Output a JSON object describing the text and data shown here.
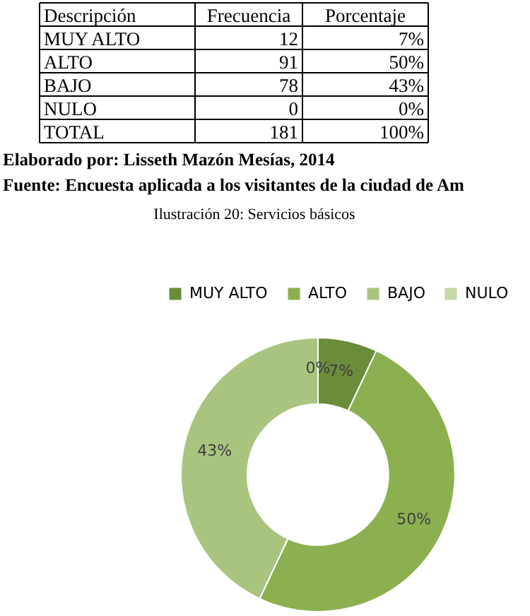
{
  "chart_data": {
    "type": "donut",
    "title": "Ilustración 20: Servicios básicos",
    "categories": [
      "MUY ALTO",
      "ALTO",
      "BAJO",
      "NULO"
    ],
    "values": [
      7,
      50,
      43,
      0
    ],
    "value_labels": [
      "7%",
      "50%",
      "43%",
      "0%"
    ],
    "colors": [
      "#6b8c3a",
      "#8cb050",
      "#a9c47f",
      "#c6d8a8"
    ],
    "legend": "top",
    "annotations": [
      "Descripción",
      "Frecuencia",
      "Porcentaje",
      "MUY ALTO",
      "12",
      "7%",
      "ALTO",
      "91",
      "50%",
      "BAJO",
      "78",
      "43%",
      "NULO",
      "0",
      "0%",
      "TOTAL",
      "181",
      "100%",
      "Elaborado por: Lisseth Mazón Mesías, 2014",
      "Fuente: Encuesta aplicada a los visitantes de la ciudad de Am"
    ]
  }
}
